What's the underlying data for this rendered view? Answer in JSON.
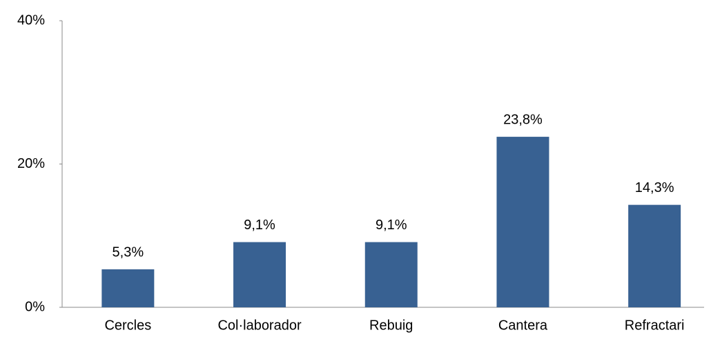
{
  "chart_data": {
    "type": "bar",
    "categories": [
      "Cercles",
      "Col·laborador",
      "Rebuig",
      "Cantera",
      "Refractari"
    ],
    "values": [
      5.3,
      9.1,
      9.1,
      23.8,
      14.3
    ],
    "value_labels": [
      "5,3%",
      "9,1%",
      "9,1%",
      "23,8%",
      "14,3%"
    ],
    "color": "#386192",
    "ylim": [
      0,
      40
    ],
    "yticks": [
      {
        "value": 0,
        "label": "0%"
      },
      {
        "value": 20,
        "label": "20%"
      },
      {
        "value": 40,
        "label": "40%"
      }
    ],
    "grid": false
  }
}
